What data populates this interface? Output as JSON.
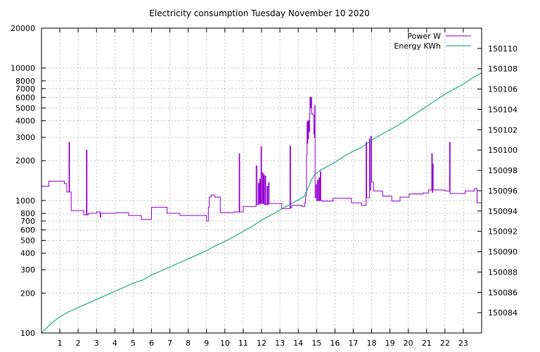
{
  "chart_data": {
    "type": "line",
    "title": "Electricity consumption Tuesday November 10 2020",
    "xlabel": "",
    "ylabel": "",
    "y2label": "",
    "grid": true,
    "legend_position": "top-right",
    "x_range": [
      0,
      24
    ],
    "x_ticks": [
      1,
      2,
      3,
      4,
      5,
      6,
      7,
      8,
      9,
      10,
      11,
      12,
      13,
      14,
      15,
      16,
      17,
      18,
      19,
      20,
      21,
      22,
      23
    ],
    "y_scale": "log",
    "y_range": [
      100,
      20000
    ],
    "y_ticks": [
      100,
      200,
      300,
      400,
      500,
      600,
      700,
      800,
      1000,
      2000,
      3000,
      4000,
      5000,
      6000,
      7000,
      8000,
      10000,
      20000
    ],
    "y2_range": [
      150082,
      150112
    ],
    "y2_ticks": [
      150084,
      150086,
      150088,
      150090,
      150092,
      150094,
      150096,
      150098,
      150100,
      150102,
      150104,
      150106,
      150108,
      150110
    ],
    "series": [
      {
        "name": "Power W",
        "axis": "y1",
        "color": "#9400d3",
        "points": [
          [
            0.0,
            1280
          ],
          [
            0.4,
            1280
          ],
          [
            0.4,
            1400
          ],
          [
            1.25,
            1400
          ],
          [
            1.25,
            1340
          ],
          [
            1.38,
            1340
          ],
          [
            1.38,
            1160
          ],
          [
            1.5,
            1160
          ],
          [
            1.5,
            2750
          ],
          [
            1.53,
            2750
          ],
          [
            1.53,
            1160
          ],
          [
            1.62,
            1160
          ],
          [
            1.62,
            840
          ],
          [
            2.3,
            840
          ],
          [
            2.3,
            780
          ],
          [
            2.45,
            780
          ],
          [
            2.45,
            2400
          ],
          [
            2.48,
            2400
          ],
          [
            2.48,
            780
          ],
          [
            2.55,
            780
          ],
          [
            2.55,
            800
          ],
          [
            3.0,
            800
          ],
          [
            3.0,
            820
          ],
          [
            3.2,
            820
          ],
          [
            3.2,
            750
          ],
          [
            3.23,
            750
          ],
          [
            3.23,
            800
          ],
          [
            4.1,
            800
          ],
          [
            4.1,
            810
          ],
          [
            4.75,
            810
          ],
          [
            4.75,
            770
          ],
          [
            5.45,
            770
          ],
          [
            5.45,
            720
          ],
          [
            6.0,
            720
          ],
          [
            6.0,
            890
          ],
          [
            6.85,
            890
          ],
          [
            6.85,
            800
          ],
          [
            7.55,
            800
          ],
          [
            7.55,
            770
          ],
          [
            9.0,
            770
          ],
          [
            9.0,
            700
          ],
          [
            9.1,
            700
          ],
          [
            9.1,
            890
          ],
          [
            9.15,
            890
          ],
          [
            9.15,
            1060
          ],
          [
            9.25,
            1060
          ],
          [
            9.25,
            1100
          ],
          [
            9.45,
            1100
          ],
          [
            9.45,
            1060
          ],
          [
            9.75,
            1060
          ],
          [
            9.75,
            810
          ],
          [
            10.5,
            810
          ],
          [
            10.5,
            820
          ],
          [
            10.78,
            820
          ],
          [
            10.78,
            2250
          ],
          [
            10.81,
            2250
          ],
          [
            10.81,
            820
          ],
          [
            11.0,
            820
          ],
          [
            11.0,
            900
          ],
          [
            11.7,
            900
          ],
          [
            11.7,
            1820
          ],
          [
            11.75,
            1820
          ],
          [
            11.75,
            930
          ],
          [
            11.82,
            930
          ],
          [
            11.82,
            1350
          ],
          [
            11.86,
            1350
          ],
          [
            11.86,
            940
          ],
          [
            11.9,
            940
          ],
          [
            11.9,
            1450
          ],
          [
            11.93,
            1450
          ],
          [
            11.93,
            950
          ],
          [
            11.97,
            950
          ],
          [
            11.97,
            2550
          ],
          [
            12.0,
            2550
          ],
          [
            12.0,
            950
          ],
          [
            12.05,
            950
          ],
          [
            12.05,
            1620
          ],
          [
            12.08,
            1620
          ],
          [
            12.08,
            950
          ],
          [
            12.12,
            950
          ],
          [
            12.12,
            1560
          ],
          [
            12.15,
            1560
          ],
          [
            12.15,
            930
          ],
          [
            12.2,
            930
          ],
          [
            12.2,
            1530
          ],
          [
            12.23,
            1530
          ],
          [
            12.23,
            930
          ],
          [
            12.3,
            930
          ],
          [
            12.3,
            1280
          ],
          [
            12.33,
            1280
          ],
          [
            12.33,
            930
          ],
          [
            12.38,
            930
          ],
          [
            12.38,
            1360
          ],
          [
            12.41,
            1360
          ],
          [
            12.41,
            950
          ],
          [
            13.1,
            950
          ],
          [
            13.1,
            870
          ],
          [
            13.55,
            870
          ],
          [
            13.55,
            2570
          ],
          [
            13.58,
            2570
          ],
          [
            13.58,
            880
          ],
          [
            13.65,
            880
          ],
          [
            13.65,
            920
          ],
          [
            14.2,
            920
          ],
          [
            14.2,
            900
          ],
          [
            14.35,
            900
          ],
          [
            14.35,
            960
          ],
          [
            14.4,
            960
          ],
          [
            14.4,
            1080
          ],
          [
            14.45,
            1080
          ],
          [
            14.45,
            2200
          ],
          [
            14.48,
            2200
          ],
          [
            14.48,
            3900
          ],
          [
            14.5,
            3900
          ],
          [
            14.5,
            2700
          ],
          [
            14.52,
            2700
          ],
          [
            14.52,
            4000
          ],
          [
            14.54,
            4000
          ],
          [
            14.54,
            2900
          ],
          [
            14.56,
            2900
          ],
          [
            14.56,
            4000
          ],
          [
            14.58,
            4000
          ],
          [
            14.58,
            3300
          ],
          [
            14.62,
            3300
          ],
          [
            14.62,
            4500
          ],
          [
            14.64,
            4500
          ],
          [
            14.64,
            6000
          ],
          [
            14.67,
            6000
          ],
          [
            14.67,
            5000
          ],
          [
            14.7,
            5000
          ],
          [
            14.7,
            6000
          ],
          [
            14.73,
            6000
          ],
          [
            14.73,
            4500
          ],
          [
            14.8,
            4500
          ],
          [
            14.8,
            4400
          ],
          [
            14.85,
            4400
          ],
          [
            14.85,
            3200
          ],
          [
            14.87,
            3200
          ],
          [
            14.87,
            3700
          ],
          [
            14.88,
            3700
          ],
          [
            14.88,
            3000
          ],
          [
            14.9,
            3000
          ],
          [
            14.9,
            5200
          ],
          [
            14.92,
            5200
          ],
          [
            14.92,
            1050
          ],
          [
            14.97,
            1050
          ],
          [
            14.97,
            1320
          ],
          [
            15.0,
            1320
          ],
          [
            15.0,
            1000
          ],
          [
            15.05,
            1000
          ],
          [
            15.05,
            1420
          ],
          [
            15.08,
            1420
          ],
          [
            15.08,
            1000
          ],
          [
            15.13,
            1000
          ],
          [
            15.13,
            1480
          ],
          [
            15.16,
            1480
          ],
          [
            15.16,
            1000
          ],
          [
            15.2,
            1000
          ],
          [
            15.2,
            1650
          ],
          [
            15.23,
            1650
          ],
          [
            15.23,
            1000
          ],
          [
            15.3,
            1000
          ],
          [
            15.3,
            990
          ],
          [
            15.9,
            990
          ],
          [
            15.9,
            1040
          ],
          [
            16.9,
            1040
          ],
          [
            16.9,
            960
          ],
          [
            17.45,
            960
          ],
          [
            17.45,
            920
          ],
          [
            17.7,
            920
          ],
          [
            17.7,
            2750
          ],
          [
            17.73,
            2750
          ],
          [
            17.73,
            1050
          ],
          [
            17.88,
            1050
          ],
          [
            17.88,
            2920
          ],
          [
            17.9,
            2920
          ],
          [
            17.9,
            1200
          ],
          [
            17.95,
            1200
          ],
          [
            17.95,
            3050
          ],
          [
            18.0,
            3050
          ],
          [
            18.0,
            1380
          ],
          [
            18.1,
            1380
          ],
          [
            18.1,
            1180
          ],
          [
            18.6,
            1180
          ],
          [
            18.6,
            1080
          ],
          [
            19.1,
            1080
          ],
          [
            19.1,
            990
          ],
          [
            19.55,
            990
          ],
          [
            19.55,
            1060
          ],
          [
            20.05,
            1060
          ],
          [
            20.05,
            1120
          ],
          [
            20.8,
            1120
          ],
          [
            20.8,
            1140
          ],
          [
            21.1,
            1140
          ],
          [
            21.1,
            1200
          ],
          [
            21.28,
            1200
          ],
          [
            21.28,
            2250
          ],
          [
            21.31,
            2250
          ],
          [
            21.31,
            1150
          ],
          [
            21.33,
            1150
          ],
          [
            21.33,
            1880
          ],
          [
            21.36,
            1880
          ],
          [
            21.36,
            1200
          ],
          [
            22.0,
            1200
          ],
          [
            22.0,
            1180
          ],
          [
            22.25,
            1180
          ],
          [
            22.25,
            2750
          ],
          [
            22.28,
            2750
          ],
          [
            22.28,
            1130
          ],
          [
            23.1,
            1130
          ],
          [
            23.1,
            1180
          ],
          [
            23.6,
            1180
          ],
          [
            23.6,
            1230
          ],
          [
            23.75,
            1230
          ],
          [
            23.75,
            960
          ],
          [
            24.0,
            960
          ]
        ]
      },
      {
        "name": "Energy KWh",
        "axis": "y2",
        "color": "#009e73",
        "points": [
          [
            0.0,
            150082.0
          ],
          [
            0.5,
            150082.9
          ],
          [
            1.0,
            150083.6
          ],
          [
            1.5,
            150084.1
          ],
          [
            2.0,
            150084.5
          ],
          [
            2.5,
            150084.9
          ],
          [
            3.0,
            150085.3
          ],
          [
            3.5,
            150085.7
          ],
          [
            4.0,
            150086.1
          ],
          [
            4.5,
            150086.5
          ],
          [
            5.0,
            150086.9
          ],
          [
            5.5,
            150087.2
          ],
          [
            6.0,
            150087.7
          ],
          [
            6.5,
            150088.1
          ],
          [
            7.0,
            150088.5
          ],
          [
            7.5,
            150088.9
          ],
          [
            8.0,
            150089.3
          ],
          [
            8.5,
            150089.7
          ],
          [
            9.0,
            150090.1
          ],
          [
            9.5,
            150090.6
          ],
          [
            10.0,
            150091.0
          ],
          [
            10.5,
            150091.5
          ],
          [
            11.0,
            150092.0
          ],
          [
            11.5,
            150092.5
          ],
          [
            12.0,
            150093.1
          ],
          [
            12.5,
            150093.6
          ],
          [
            13.0,
            150094.1
          ],
          [
            13.5,
            150094.6
          ],
          [
            14.0,
            150095.1
          ],
          [
            14.3,
            150095.4
          ],
          [
            14.5,
            150096.1
          ],
          [
            14.7,
            150097.0
          ],
          [
            14.9,
            150097.6
          ],
          [
            15.2,
            150098.0
          ],
          [
            15.5,
            150098.3
          ],
          [
            16.0,
            150098.8
          ],
          [
            16.5,
            150099.4
          ],
          [
            17.0,
            150099.9
          ],
          [
            17.5,
            150100.3
          ],
          [
            18.0,
            150101.0
          ],
          [
            18.5,
            150101.5
          ],
          [
            19.0,
            150102.0
          ],
          [
            19.5,
            150102.5
          ],
          [
            20.0,
            150103.1
          ],
          [
            20.5,
            150103.7
          ],
          [
            21.0,
            150104.3
          ],
          [
            21.5,
            150104.9
          ],
          [
            22.0,
            150105.5
          ],
          [
            22.5,
            150106.0
          ],
          [
            23.0,
            150106.5
          ],
          [
            23.5,
            150107.1
          ],
          [
            24.0,
            150107.6
          ]
        ]
      }
    ]
  }
}
